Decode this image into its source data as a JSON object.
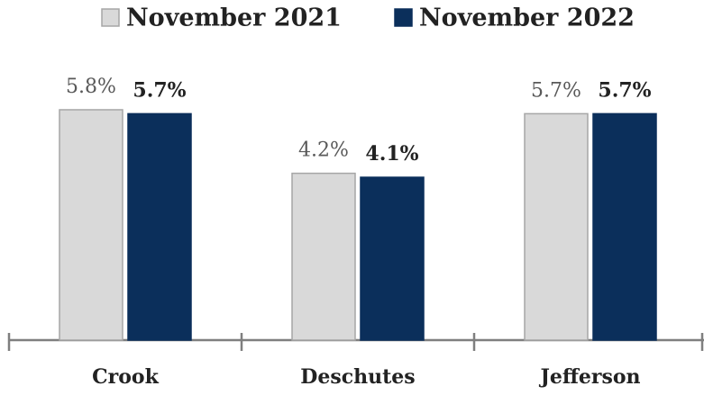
{
  "chart_data": {
    "type": "bar",
    "categories": [
      "Crook",
      "Deschutes",
      "Jefferson"
    ],
    "series": [
      {
        "name": "November 2021",
        "color": "#d9d9d9",
        "values": [
          5.8,
          4.2,
          5.7
        ],
        "value_labels": [
          "5.8%",
          "4.2%",
          "5.7%"
        ]
      },
      {
        "name": "November 2022",
        "color": "#0b2f5b",
        "values": [
          5.7,
          4.1,
          5.7
        ],
        "value_labels": [
          "5.7%",
          "4.1%",
          "5.7%"
        ]
      }
    ],
    "ylim": [
      0,
      7
    ]
  }
}
